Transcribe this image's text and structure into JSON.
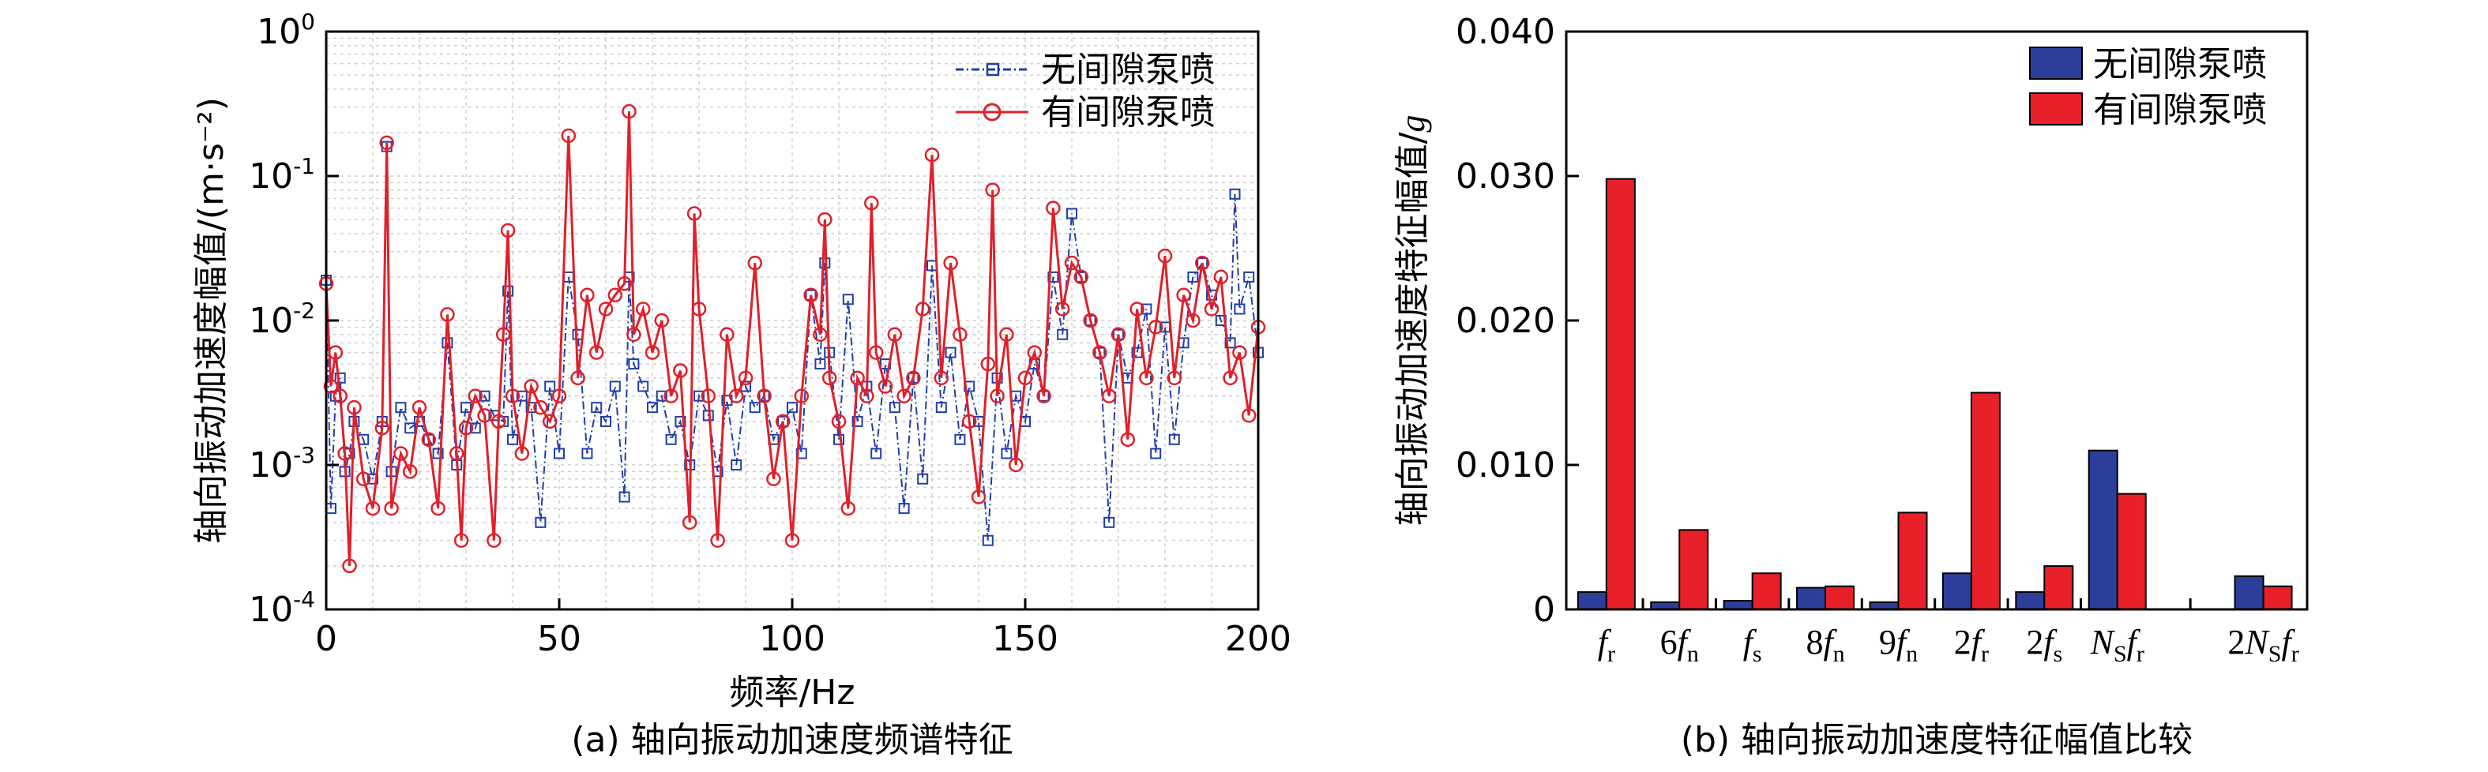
{
  "chart_data": [
    {
      "type": "line",
      "caption": "(a) 轴向振动加速度频谱特征",
      "xlabel": "频率/Hz",
      "ylabel": "轴向振动加速度幅值/(m·s⁻²)",
      "xlim": [
        0,
        200
      ],
      "ylim": [
        0.0001,
        1
      ],
      "yscale": "log",
      "grid": true,
      "legend_position": "top-right",
      "x_ticks": [
        "0",
        "50",
        "100",
        "150",
        "200"
      ],
      "y_ticks": [
        {
          "base": "10",
          "exp": "-4"
        },
        {
          "base": "10",
          "exp": "-3"
        },
        {
          "base": "10",
          "exp": "-2"
        },
        {
          "base": "10",
          "exp": "-1"
        },
        {
          "base": "10",
          "exp": "0"
        }
      ],
      "series": [
        {
          "name": "无间隙泵喷",
          "color": "#1f3fa8",
          "marker": "square",
          "line_style": "dash-dot",
          "x": [
            0,
            1,
            2,
            3,
            4,
            5,
            6,
            8,
            10,
            12,
            13,
            14,
            16,
            18,
            20,
            22,
            24,
            26,
            28,
            30,
            32,
            34,
            36,
            38,
            39,
            40,
            42,
            44,
            46,
            48,
            50,
            52,
            54,
            56,
            58,
            60,
            62,
            64,
            65,
            66,
            68,
            70,
            72,
            74,
            76,
            78,
            80,
            82,
            84,
            86,
            88,
            90,
            92,
            94,
            96,
            98,
            100,
            102,
            104,
            106,
            107,
            108,
            110,
            112,
            114,
            116,
            118,
            120,
            122,
            124,
            126,
            128,
            130,
            132,
            134,
            136,
            138,
            140,
            142,
            144,
            146,
            148,
            150,
            152,
            154,
            156,
            158,
            160,
            162,
            164,
            166,
            168,
            170,
            172,
            174,
            176,
            178,
            180,
            182,
            184,
            186,
            188,
            190,
            192,
            194,
            195,
            196,
            198,
            200
          ],
          "values": [
            0.019,
            0.0005,
            0.003,
            0.004,
            0.0009,
            0.0012,
            0.002,
            0.0015,
            0.0008,
            0.002,
            0.16,
            0.0009,
            0.0025,
            0.0018,
            0.002,
            0.0015,
            0.0012,
            0.007,
            0.001,
            0.0025,
            0.0018,
            0.003,
            0.0022,
            0.002,
            0.016,
            0.0015,
            0.003,
            0.0025,
            0.0004,
            0.0035,
            0.0012,
            0.02,
            0.008,
            0.0012,
            0.0025,
            0.002,
            0.0035,
            0.0006,
            0.02,
            0.005,
            0.0035,
            0.0025,
            0.003,
            0.0015,
            0.002,
            0.001,
            0.003,
            0.0022,
            0.0009,
            0.0028,
            0.001,
            0.0035,
            0.0025,
            0.003,
            0.0015,
            0.002,
            0.0025,
            0.0012,
            0.015,
            0.005,
            0.025,
            0.006,
            0.0015,
            0.014,
            0.002,
            0.0035,
            0.0012,
            0.005,
            0.0025,
            0.0005,
            0.004,
            0.0008,
            0.024,
            0.0025,
            0.006,
            0.0015,
            0.0035,
            0.002,
            0.0003,
            0.004,
            0.0012,
            0.003,
            0.002,
            0.005,
            0.003,
            0.02,
            0.008,
            0.055,
            0.02,
            0.01,
            0.006,
            0.0004,
            0.008,
            0.004,
            0.006,
            0.012,
            0.0012,
            0.009,
            0.0015,
            0.007,
            0.02,
            0.025,
            0.015,
            0.01,
            0.007,
            0.075,
            0.012,
            0.02,
            0.006
          ]
        },
        {
          "name": "有间隙泵喷",
          "color": "#e0202a",
          "marker": "circle",
          "line_style": "solid",
          "x": [
            0,
            1,
            2,
            3,
            4,
            5,
            6,
            8,
            10,
            12,
            13,
            14,
            16,
            18,
            20,
            22,
            24,
            26,
            28,
            29,
            30,
            32,
            34,
            36,
            37,
            38,
            39,
            40,
            42,
            44,
            46,
            48,
            50,
            52,
            54,
            56,
            58,
            60,
            62,
            64,
            65,
            66,
            68,
            70,
            72,
            74,
            76,
            78,
            79,
            80,
            82,
            84,
            86,
            88,
            90,
            92,
            94,
            96,
            98,
            100,
            102,
            104,
            106,
            107,
            108,
            110,
            112,
            114,
            116,
            117,
            118,
            120,
            122,
            124,
            126,
            128,
            130,
            132,
            134,
            136,
            138,
            140,
            142,
            143,
            144,
            146,
            148,
            150,
            152,
            154,
            156,
            158,
            160,
            162,
            164,
            166,
            168,
            170,
            172,
            174,
            176,
            178,
            180,
            182,
            184,
            186,
            188,
            190,
            192,
            194,
            196,
            198,
            200
          ],
          "values": [
            0.018,
            0.0035,
            0.006,
            0.003,
            0.0012,
            0.0002,
            0.0025,
            0.0008,
            0.0005,
            0.0018,
            0.17,
            0.0005,
            0.0012,
            0.0009,
            0.0025,
            0.0015,
            0.0005,
            0.011,
            0.0012,
            0.0003,
            0.0018,
            0.003,
            0.0022,
            0.0003,
            0.002,
            0.008,
            0.042,
            0.003,
            0.0012,
            0.0035,
            0.0025,
            0.002,
            0.003,
            0.19,
            0.004,
            0.015,
            0.006,
            0.012,
            0.015,
            0.018,
            0.28,
            0.008,
            0.012,
            0.006,
            0.01,
            0.003,
            0.0045,
            0.0004,
            0.055,
            0.012,
            0.003,
            0.0003,
            0.008,
            0.003,
            0.004,
            0.025,
            0.003,
            0.0008,
            0.002,
            0.0003,
            0.003,
            0.015,
            0.008,
            0.05,
            0.004,
            0.002,
            0.0005,
            0.004,
            0.003,
            0.065,
            0.006,
            0.0035,
            0.008,
            0.003,
            0.004,
            0.012,
            0.14,
            0.004,
            0.025,
            0.008,
            0.002,
            0.0006,
            0.005,
            0.08,
            0.003,
            0.008,
            0.001,
            0.004,
            0.006,
            0.003,
            0.06,
            0.012,
            0.025,
            0.02,
            0.01,
            0.006,
            0.003,
            0.008,
            0.0015,
            0.012,
            0.004,
            0.009,
            0.028,
            0.004,
            0.015,
            0.01,
            0.025,
            0.012,
            0.02,
            0.004,
            0.006,
            0.0022,
            0.009
          ]
        }
      ]
    },
    {
      "type": "bar",
      "caption": "(b) 轴向振动加速度特征幅值比较",
      "ylabel": "轴向振动加速度特征幅值/",
      "ylabel_unit": "g",
      "ylim": [
        0,
        0.04
      ],
      "y_ticks": [
        "0",
        "0.010",
        "0.020",
        "0.030",
        "0.040"
      ],
      "legend_position": "top-right",
      "categories": [
        {
          "pre": "",
          "main": "f",
          "sub": "r",
          "post": ""
        },
        {
          "pre": "6",
          "main": "f",
          "sub": "n",
          "post": ""
        },
        {
          "pre": "",
          "main": "f",
          "sub": "s",
          "post": ""
        },
        {
          "pre": "8",
          "main": "f",
          "sub": "n",
          "post": ""
        },
        {
          "pre": "9",
          "main": "f",
          "sub": "n",
          "post": ""
        },
        {
          "pre": "2",
          "main": "f",
          "sub": "r",
          "post": ""
        },
        {
          "pre": "2",
          "main": "f",
          "sub": "s",
          "post": ""
        },
        {
          "pre": "",
          "main": "N",
          "sub": "S",
          "post": "f",
          "post_sub": "r"
        },
        {
          "pre": "2",
          "main": "N",
          "sub": "S",
          "post": "f",
          "post_sub": "r"
        }
      ],
      "series": [
        {
          "name": "无间隙泵喷",
          "color": "#2b3e9a",
          "values": [
            0.0012,
            0.0005,
            0.0006,
            0.0015,
            0.0005,
            0.0025,
            0.0012,
            0.011,
            0.0023
          ]
        },
        {
          "name": "有间隙泵喷",
          "color": "#e8202a",
          "values": [
            0.0298,
            0.0055,
            0.0025,
            0.0016,
            0.0067,
            0.015,
            0.003,
            0.008,
            0.0016
          ]
        }
      ]
    }
  ]
}
